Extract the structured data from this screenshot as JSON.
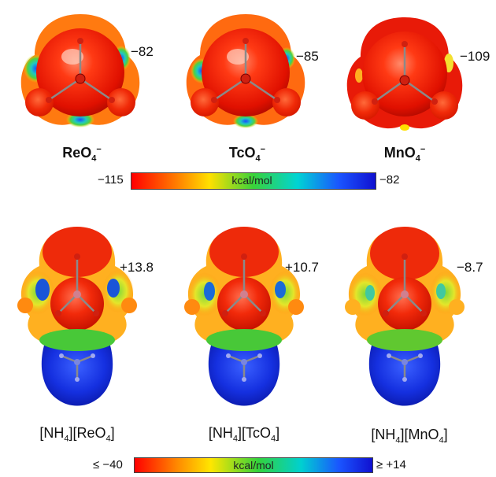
{
  "top_row": {
    "molecules": [
      {
        "formula": "ReO",
        "sub": "4",
        "charge": "−",
        "value": "−82"
      },
      {
        "formula": "TcO",
        "sub": "4",
        "charge": "−",
        "value": "−85"
      },
      {
        "formula": "MnO",
        "sub": "4",
        "charge": "−",
        "value": "−109"
      }
    ],
    "scale": {
      "min": "−115",
      "max": "−82",
      "unit": "kcal/mol"
    }
  },
  "bottom_row": {
    "molecules": [
      {
        "cation": "[NH",
        "cation_sub": "4",
        "anion": "][ReO",
        "anion_sub": "4",
        "close": "]",
        "value": "+13.8"
      },
      {
        "cation": "[NH",
        "cation_sub": "4",
        "anion": "][TcO",
        "anion_sub": "4",
        "close": "]",
        "value": "+10.7"
      },
      {
        "cation": "[NH",
        "cation_sub": "4",
        "anion": "][MnO",
        "anion_sub": "4",
        "close": "]",
        "value": "−8.7"
      }
    ],
    "scale": {
      "min": "≤ −40",
      "max": "≥ +14",
      "unit": "kcal/mol"
    }
  },
  "colors": {
    "red": "#e8140a",
    "orange": "#ff7a00",
    "yellow": "#ffe000",
    "green": "#34c83a",
    "cyan": "#00c8c8",
    "blue": "#1428e0"
  }
}
